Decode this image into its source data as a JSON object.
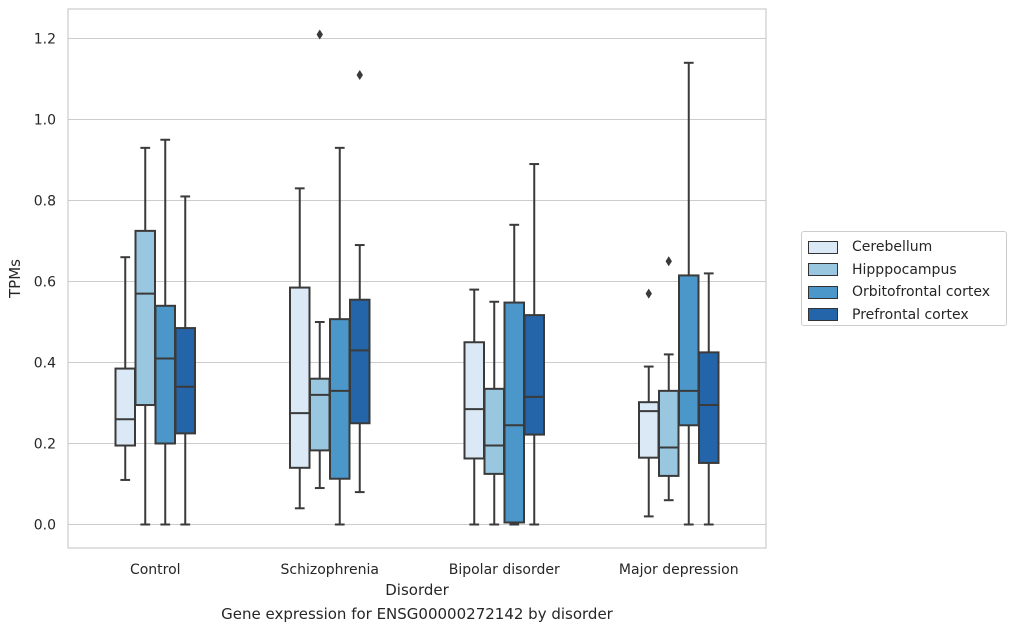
{
  "chart_data": {
    "type": "boxplot",
    "caption": "Gene expression for ENSG00000272142 by disorder",
    "xlabel": "Disorder",
    "ylabel": "TPMs",
    "categories": [
      "Control",
      "Schizophrenia",
      "Bipolar disorder",
      "Major depression"
    ],
    "ylim": [
      -0.06,
      1.27
    ],
    "yticks": [
      0.0,
      0.2,
      0.4,
      0.6,
      0.8,
      1.0,
      1.2
    ],
    "ytick_labels": [
      "0.0",
      "0.2",
      "0.4",
      "0.6",
      "0.8",
      "1.0",
      "1.2"
    ],
    "grid": "horizontal",
    "legend_position": "right",
    "series": [
      {
        "name": "Cerebellum",
        "color": "#dbe9f6",
        "boxes": [
          {
            "whisker_low": 0.11,
            "q1": 0.195,
            "median": 0.26,
            "q3": 0.385,
            "whisker_high": 0.66,
            "outliers": []
          },
          {
            "whisker_low": 0.04,
            "q1": 0.14,
            "median": 0.275,
            "q3": 0.585,
            "whisker_high": 0.83,
            "outliers": []
          },
          {
            "whisker_low": 0.0,
            "q1": 0.163,
            "median": 0.285,
            "q3": 0.45,
            "whisker_high": 0.58,
            "outliers": []
          },
          {
            "whisker_low": 0.02,
            "q1": 0.165,
            "median": 0.28,
            "q3": 0.302,
            "whisker_high": 0.39,
            "outliers": [
              0.57
            ]
          }
        ]
      },
      {
        "name": "Hipppocampus",
        "color": "#9ac7e0",
        "boxes": [
          {
            "whisker_low": 0.0,
            "q1": 0.295,
            "median": 0.57,
            "q3": 0.725,
            "whisker_high": 0.93,
            "outliers": []
          },
          {
            "whisker_low": 0.09,
            "q1": 0.183,
            "median": 0.32,
            "q3": 0.36,
            "whisker_high": 0.5,
            "outliers": [
              1.21
            ]
          },
          {
            "whisker_low": 0.0,
            "q1": 0.125,
            "median": 0.195,
            "q3": 0.335,
            "whisker_high": 0.55,
            "outliers": []
          },
          {
            "whisker_low": 0.06,
            "q1": 0.12,
            "median": 0.19,
            "q3": 0.33,
            "whisker_high": 0.42,
            "outliers": [
              0.65
            ]
          }
        ]
      },
      {
        "name": "Orbitofrontal cortex",
        "color": "#4b97c9",
        "boxes": [
          {
            "whisker_low": 0.0,
            "q1": 0.2,
            "median": 0.41,
            "q3": 0.54,
            "whisker_high": 0.95,
            "outliers": []
          },
          {
            "whisker_low": 0.0,
            "q1": 0.113,
            "median": 0.33,
            "q3": 0.507,
            "whisker_high": 0.93,
            "outliers": []
          },
          {
            "whisker_low": 0.0,
            "q1": 0.005,
            "median": 0.245,
            "q3": 0.548,
            "whisker_high": 0.74,
            "outliers": []
          },
          {
            "whisker_low": 0.0,
            "q1": 0.245,
            "median": 0.33,
            "q3": 0.615,
            "whisker_high": 1.14,
            "outliers": []
          }
        ]
      },
      {
        "name": "Prefrontal cortex",
        "color": "#2464a8",
        "boxes": [
          {
            "whisker_low": 0.0,
            "q1": 0.225,
            "median": 0.34,
            "q3": 0.485,
            "whisker_high": 0.81,
            "outliers": []
          },
          {
            "whisker_low": 0.08,
            "q1": 0.25,
            "median": 0.43,
            "q3": 0.555,
            "whisker_high": 0.69,
            "outliers": [
              1.11
            ]
          },
          {
            "whisker_low": 0.0,
            "q1": 0.222,
            "median": 0.315,
            "q3": 0.517,
            "whisker_high": 0.89,
            "outliers": []
          },
          {
            "whisker_low": 0.0,
            "q1": 0.152,
            "median": 0.295,
            "q3": 0.425,
            "whisker_high": 0.62,
            "outliers": []
          }
        ]
      }
    ]
  }
}
